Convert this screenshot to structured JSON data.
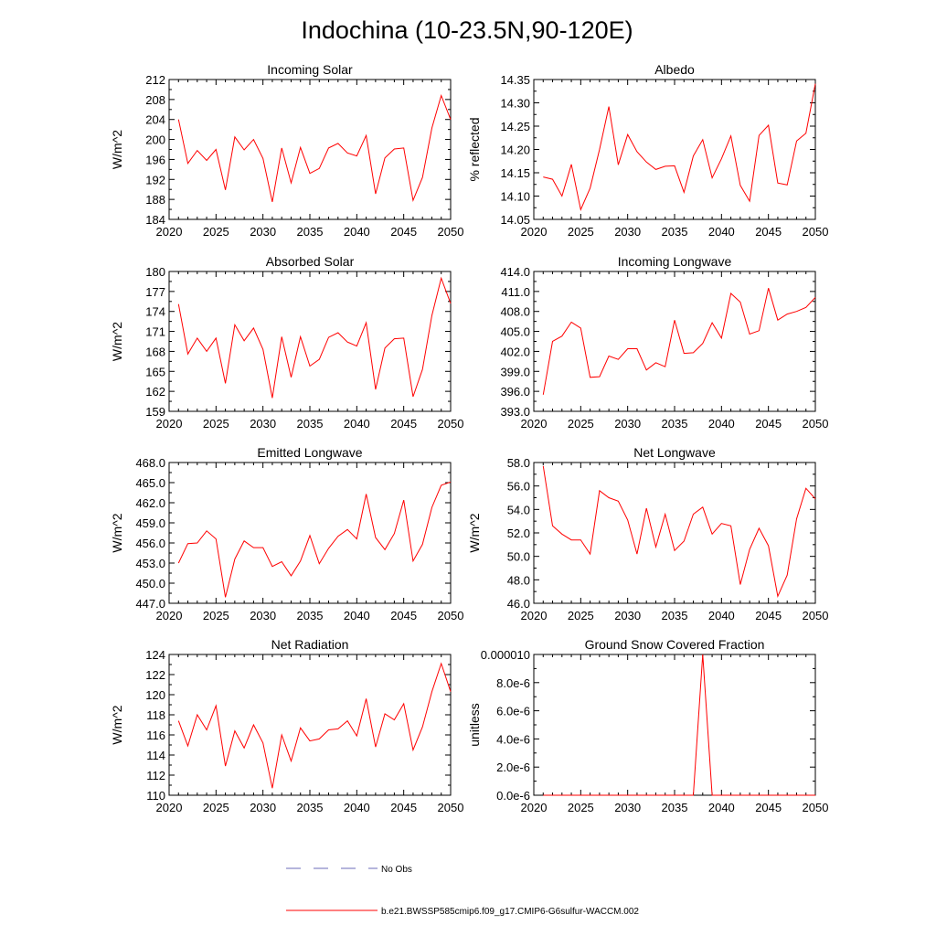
{
  "figure": {
    "title": "Indochina (10-23.5N,90-120E)",
    "line_color": "#ff0000",
    "obs_color": "#6b6bb8",
    "legend": {
      "obs_label": "No Obs",
      "model_label": "b.e21.BWSSP585cmip6.f09_g17.CMIP6-G6sulfur-WACCM.002"
    }
  },
  "chart_data": [
    {
      "type": "line",
      "title": "Incoming Solar",
      "ylabel": "W/m^2",
      "xlim": [
        2020,
        2050
      ],
      "ylim": [
        184,
        212
      ],
      "xticks": [
        2020,
        2025,
        2030,
        2035,
        2040,
        2045,
        2050
      ],
      "yticks": [
        "184",
        "188",
        "192",
        "196",
        "200",
        "204",
        "208",
        "212"
      ],
      "x": [
        2021,
        2022,
        2023,
        2024,
        2025,
        2026,
        2027,
        2028,
        2029,
        2030,
        2031,
        2032,
        2033,
        2034,
        2035,
        2036,
        2037,
        2038,
        2039,
        2040,
        2041,
        2042,
        2043,
        2044,
        2045,
        2046,
        2047,
        2048,
        2049,
        2050
      ],
      "y": [
        204.0,
        195.2,
        197.8,
        195.8,
        198.0,
        189.9,
        200.5,
        197.9,
        200.0,
        196.2,
        187.5,
        198.3,
        191.3,
        198.4,
        193.2,
        194.2,
        198.3,
        199.2,
        197.3,
        196.7,
        200.8,
        189.1,
        196.3,
        198.1,
        198.3,
        187.8,
        192.4,
        202.3,
        208.8,
        204.0
      ]
    },
    {
      "type": "line",
      "title": "Albedo",
      "ylabel": "% reflected",
      "xlim": [
        2020,
        2050
      ],
      "ylim": [
        14.05,
        14.35
      ],
      "xticks": [
        2020,
        2025,
        2030,
        2035,
        2040,
        2045,
        2050
      ],
      "yticks": [
        "14.05",
        "14.10",
        "14.15",
        "14.20",
        "14.25",
        "14.30",
        "14.35"
      ],
      "x": [
        2021,
        2022,
        2023,
        2024,
        2025,
        2026,
        2027,
        2028,
        2029,
        2030,
        2031,
        2032,
        2033,
        2034,
        2035,
        2036,
        2037,
        2038,
        2039,
        2040,
        2041,
        2042,
        2043,
        2044,
        2045,
        2046,
        2047,
        2048,
        2049,
        2050
      ],
      "y": [
        14.141,
        14.136,
        14.1,
        14.168,
        14.071,
        14.117,
        14.2,
        14.292,
        14.167,
        14.232,
        14.195,
        14.173,
        14.157,
        14.164,
        14.165,
        14.108,
        14.186,
        14.221,
        14.139,
        14.18,
        14.229,
        14.123,
        14.089,
        14.23,
        14.252,
        14.128,
        14.124,
        14.218,
        14.235,
        14.341
      ]
    },
    {
      "type": "line",
      "title": "Absorbed Solar",
      "ylabel": "W/m^2",
      "xlim": [
        2020,
        2050
      ],
      "ylim": [
        159,
        180
      ],
      "xticks": [
        2020,
        2025,
        2030,
        2035,
        2040,
        2045,
        2050
      ],
      "yticks": [
        "159",
        "162",
        "165",
        "168",
        "171",
        "174",
        "177",
        "180"
      ],
      "x": [
        2021,
        2022,
        2023,
        2024,
        2025,
        2026,
        2027,
        2028,
        2029,
        2030,
        2031,
        2032,
        2033,
        2034,
        2035,
        2036,
        2037,
        2038,
        2039,
        2040,
        2041,
        2042,
        2043,
        2044,
        2045,
        2046,
        2047,
        2048,
        2049,
        2050
      ],
      "y": [
        175.1,
        167.6,
        170.0,
        168.0,
        170.0,
        163.2,
        172.0,
        169.6,
        171.5,
        168.3,
        161.0,
        170.2,
        164.1,
        170.2,
        165.8,
        166.8,
        170.1,
        170.8,
        169.4,
        168.8,
        172.3,
        162.3,
        168.5,
        169.9,
        170.0,
        161.2,
        165.3,
        173.4,
        179.0,
        175.2
      ]
    },
    {
      "type": "line",
      "title": "Incoming Longwave",
      "ylabel": "",
      "xlim": [
        2020,
        2050
      ],
      "ylim": [
        393,
        414
      ],
      "xticks": [
        2020,
        2025,
        2030,
        2035,
        2040,
        2045,
        2050
      ],
      "yticks": [
        "393.0",
        "396.0",
        "399.0",
        "402.0",
        "405.0",
        "408.0",
        "411.0",
        "414.0"
      ],
      "x": [
        2021,
        2022,
        2023,
        2024,
        2025,
        2026,
        2027,
        2028,
        2029,
        2030,
        2031,
        2032,
        2033,
        2034,
        2035,
        2036,
        2037,
        2038,
        2039,
        2040,
        2041,
        2042,
        2043,
        2044,
        2045,
        2046,
        2047,
        2048,
        2049,
        2050
      ],
      "y": [
        395.5,
        403.5,
        404.3,
        406.4,
        405.5,
        398.1,
        398.2,
        401.3,
        400.8,
        402.4,
        402.4,
        399.2,
        400.3,
        399.7,
        406.7,
        401.7,
        401.8,
        403.2,
        406.3,
        404.0,
        410.7,
        409.4,
        404.6,
        405.1,
        411.5,
        406.7,
        407.6,
        408.0,
        408.6,
        410.1
      ]
    },
    {
      "type": "line",
      "title": "Emitted Longwave",
      "ylabel": "W/m^2",
      "xlim": [
        2020,
        2050
      ],
      "ylim": [
        447,
        468
      ],
      "xticks": [
        2020,
        2025,
        2030,
        2035,
        2040,
        2045,
        2050
      ],
      "yticks": [
        "447.0",
        "450.0",
        "453.0",
        "456.0",
        "459.0",
        "462.0",
        "465.0",
        "468.0"
      ],
      "x": [
        2021,
        2022,
        2023,
        2024,
        2025,
        2026,
        2027,
        2028,
        2029,
        2030,
        2031,
        2032,
        2033,
        2034,
        2035,
        2036,
        2037,
        2038,
        2039,
        2040,
        2041,
        2042,
        2043,
        2044,
        2045,
        2046,
        2047,
        2048,
        2049,
        2050
      ],
      "y": [
        453.0,
        455.9,
        456.0,
        457.8,
        456.6,
        447.9,
        453.6,
        456.3,
        455.3,
        455.3,
        452.5,
        453.2,
        451.1,
        453.3,
        457.1,
        452.9,
        455.2,
        457.0,
        458.0,
        456.6,
        463.3,
        456.8,
        455.0,
        457.4,
        462.4,
        453.3,
        455.8,
        461.3,
        464.6,
        465.1
      ]
    },
    {
      "type": "line",
      "title": "Net Longwave",
      "ylabel": "W/m^2",
      "xlim": [
        2020,
        2050
      ],
      "ylim": [
        46,
        58
      ],
      "xticks": [
        2020,
        2025,
        2030,
        2035,
        2040,
        2045,
        2050
      ],
      "yticks": [
        "46.0",
        "48.0",
        "50.0",
        "52.0",
        "54.0",
        "56.0",
        "58.0"
      ],
      "x": [
        2021,
        2022,
        2023,
        2024,
        2025,
        2026,
        2027,
        2028,
        2029,
        2030,
        2031,
        2032,
        2033,
        2034,
        2035,
        2036,
        2037,
        2038,
        2039,
        2040,
        2041,
        2042,
        2043,
        2044,
        2045,
        2046,
        2047,
        2048,
        2049,
        2050
      ],
      "y": [
        57.7,
        52.6,
        51.9,
        51.4,
        51.4,
        50.2,
        55.6,
        55.0,
        54.7,
        53.1,
        50.2,
        54.1,
        50.8,
        53.6,
        50.5,
        51.3,
        53.6,
        54.2,
        51.9,
        52.8,
        52.6,
        47.6,
        50.6,
        52.4,
        50.9,
        46.6,
        48.4,
        53.2,
        55.8,
        54.9
      ]
    },
    {
      "type": "line",
      "title": "Net Radiation",
      "ylabel": "W/m^2",
      "xlim": [
        2020,
        2050
      ],
      "ylim": [
        110,
        124
      ],
      "xticks": [
        2020,
        2025,
        2030,
        2035,
        2040,
        2045,
        2050
      ],
      "yticks": [
        "110",
        "112",
        "114",
        "116",
        "118",
        "120",
        "122",
        "124"
      ],
      "x": [
        2021,
        2022,
        2023,
        2024,
        2025,
        2026,
        2027,
        2028,
        2029,
        2030,
        2031,
        2032,
        2033,
        2034,
        2035,
        2036,
        2037,
        2038,
        2039,
        2040,
        2041,
        2042,
        2043,
        2044,
        2045,
        2046,
        2047,
        2048,
        2049,
        2050
      ],
      "y": [
        117.4,
        114.9,
        118.0,
        116.5,
        118.9,
        112.9,
        116.4,
        114.7,
        117.0,
        115.2,
        110.7,
        116.0,
        113.4,
        116.7,
        115.4,
        115.6,
        116.5,
        116.6,
        117.4,
        115.9,
        119.6,
        114.8,
        118.1,
        117.5,
        119.1,
        114.5,
        116.8,
        120.3,
        123.1,
        120.3
      ]
    },
    {
      "type": "line",
      "title": "Ground Snow Covered Fraction",
      "ylabel": "unitless",
      "xlim": [
        2020,
        2050
      ],
      "ylim": [
        0,
        1e-05
      ],
      "xticks": [
        2020,
        2025,
        2030,
        2035,
        2040,
        2045,
        2050
      ],
      "yticks": [
        "0.0e-6",
        "2.0e-6",
        "4.0e-6",
        "6.0e-6",
        "8.0e-6",
        "0.000010"
      ],
      "x": [
        2021,
        2022,
        2023,
        2024,
        2025,
        2026,
        2027,
        2028,
        2029,
        2030,
        2031,
        2032,
        2033,
        2034,
        2035,
        2036,
        2037,
        2038,
        2039,
        2040,
        2041,
        2042,
        2043,
        2044,
        2045,
        2046,
        2047,
        2048,
        2049,
        2050
      ],
      "y": [
        0,
        0,
        0,
        0,
        0,
        0,
        0,
        0,
        0,
        0,
        0,
        0,
        0,
        0,
        0,
        0,
        0,
        1e-05,
        0,
        0,
        0,
        0,
        0,
        0,
        0,
        0,
        0,
        0,
        0,
        0
      ]
    }
  ]
}
